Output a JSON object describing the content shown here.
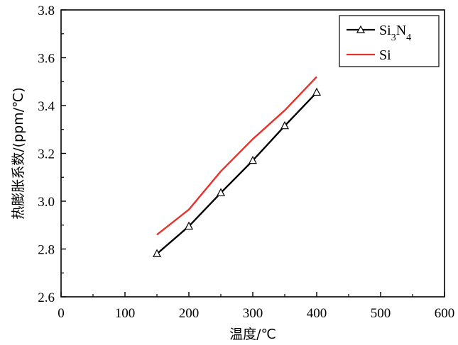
{
  "chart_data": {
    "type": "line",
    "xlabel": "温度/℃",
    "ylabel": "热膨胀系数/(ppm/℃)",
    "xlim": [
      0,
      600
    ],
    "ylim": [
      2.6,
      3.8
    ],
    "x_ticks": [
      "0",
      "100",
      "200",
      "300",
      "400",
      "500",
      "600"
    ],
    "y_ticks": [
      "2.6",
      "2.8",
      "3.0",
      "3.2",
      "3.4",
      "3.6",
      "3.8"
    ],
    "grid": false,
    "legend_position": "top-right",
    "series": [
      {
        "name": "Si3N4",
        "name_parts": {
          "base1": "Si",
          "sub1": "3",
          "base2": "N",
          "sub2": "4"
        },
        "color": "#000000",
        "marker": "open-triangle",
        "x": [
          150,
          200,
          250,
          300,
          350,
          400
        ],
        "y": [
          2.78,
          2.895,
          3.035,
          3.17,
          3.315,
          3.455
        ]
      },
      {
        "name": "Si",
        "color": "#e8312b",
        "marker": "none",
        "x": [
          150,
          200,
          250,
          300,
          350,
          400
        ],
        "y": [
          2.86,
          2.965,
          3.125,
          3.26,
          3.38,
          3.52
        ]
      }
    ]
  }
}
